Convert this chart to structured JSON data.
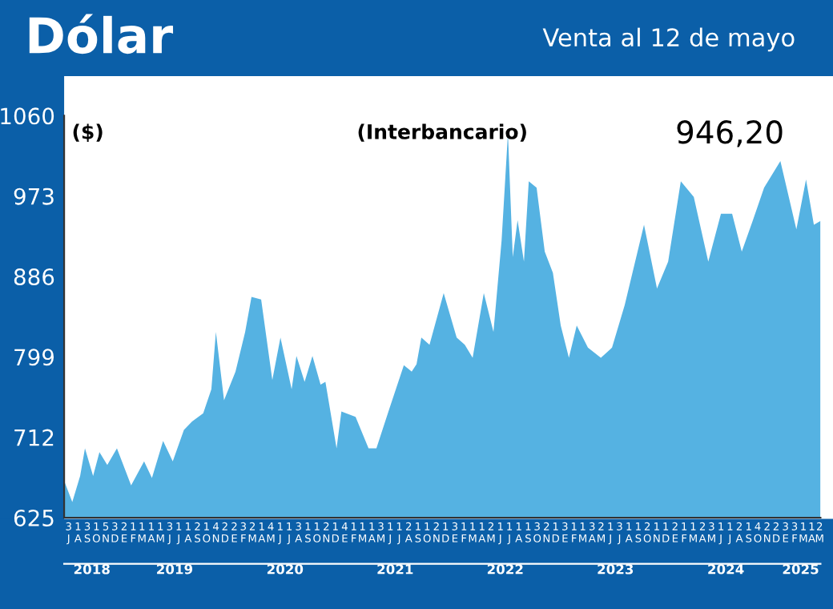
{
  "chart_data": {
    "type": "area",
    "title": "Dólar",
    "subtitle": "Venta al 12 de mayo",
    "ylabel": "($)",
    "annotations": [
      "(Interbancario)",
      "946,20"
    ],
    "color": "#55b2e2",
    "grid": false,
    "ylim": [
      625,
      1060
    ],
    "yticks": [
      625,
      712,
      799,
      886,
      973,
      1060
    ],
    "xlim": [
      "2018-07-01",
      "2025-05-12"
    ],
    "xticks": [
      {
        "value": "2018-07-16",
        "label": "3\nJ"
      },
      {
        "value": "2018-08-16",
        "label": "1\nA"
      },
      {
        "value": "2018-09-16",
        "label": "3\nS"
      },
      {
        "value": "2018-10-16",
        "label": "1\nO"
      },
      {
        "value": "2018-11-16",
        "label": "5\nN"
      },
      {
        "value": "2018-12-16",
        "label": "3\nD"
      },
      {
        "value": "2019-01-16",
        "label": "2\nE"
      },
      {
        "value": "2019-02-15",
        "label": "1\nF"
      },
      {
        "value": "2019-03-16",
        "label": "1\nM"
      },
      {
        "value": "2019-04-16",
        "label": "1\nA"
      },
      {
        "value": "2019-05-16",
        "label": "1\nM"
      },
      {
        "value": "2019-06-16",
        "label": "3\nJ"
      },
      {
        "value": "2019-07-16",
        "label": "1\nJ"
      },
      {
        "value": "2019-08-16",
        "label": "1\nA"
      },
      {
        "value": "2019-09-16",
        "label": "2\nS"
      },
      {
        "value": "2019-10-16",
        "label": "1\nO"
      },
      {
        "value": "2019-11-16",
        "label": "4\nN"
      },
      {
        "value": "2019-12-16",
        "label": "2\nD"
      },
      {
        "value": "2020-01-16",
        "label": "2\nE"
      },
      {
        "value": "2020-02-15",
        "label": "3\nF"
      },
      {
        "value": "2020-03-16",
        "label": "2\nM"
      },
      {
        "value": "2020-04-16",
        "label": "1\nA"
      },
      {
        "value": "2020-05-16",
        "label": "4\nM"
      },
      {
        "value": "2020-06-16",
        "label": "1\nJ"
      },
      {
        "value": "2020-07-16",
        "label": "1\nJ"
      },
      {
        "value": "2020-08-16",
        "label": "3\nA"
      },
      {
        "value": "2020-09-16",
        "label": "1\nS"
      },
      {
        "value": "2020-10-16",
        "label": "1\nO"
      },
      {
        "value": "2020-11-16",
        "label": "2\nN"
      },
      {
        "value": "2020-12-16",
        "label": "1\nD"
      },
      {
        "value": "2021-01-16",
        "label": "4\nE"
      },
      {
        "value": "2021-02-15",
        "label": "1\nF"
      },
      {
        "value": "2021-03-16",
        "label": "1\nM"
      },
      {
        "value": "2021-04-16",
        "label": "1\nA"
      },
      {
        "value": "2021-05-16",
        "label": "3\nM"
      },
      {
        "value": "2021-06-16",
        "label": "1\nJ"
      },
      {
        "value": "2021-07-16",
        "label": "1\nJ"
      },
      {
        "value": "2021-08-16",
        "label": "2\nA"
      },
      {
        "value": "2021-09-16",
        "label": "1\nS"
      },
      {
        "value": "2021-10-16",
        "label": "1\nO"
      },
      {
        "value": "2021-11-16",
        "label": "2\nN"
      },
      {
        "value": "2021-12-16",
        "label": "1\nD"
      },
      {
        "value": "2022-01-16",
        "label": "3\nE"
      },
      {
        "value": "2022-02-15",
        "label": "1\nF"
      },
      {
        "value": "2022-03-16",
        "label": "1\nM"
      },
      {
        "value": "2022-04-16",
        "label": "1\nA"
      },
      {
        "value": "2022-05-16",
        "label": "2\nM"
      },
      {
        "value": "2022-06-16",
        "label": "1\nJ"
      },
      {
        "value": "2022-07-16",
        "label": "1\nJ"
      },
      {
        "value": "2022-08-16",
        "label": "1\nA"
      },
      {
        "value": "2022-09-16",
        "label": "1\nS"
      },
      {
        "value": "2022-10-16",
        "label": "3\nO"
      },
      {
        "value": "2022-11-16",
        "label": "2\nN"
      },
      {
        "value": "2022-12-16",
        "label": "1\nD"
      },
      {
        "value": "2023-01-16",
        "label": "3\nE"
      },
      {
        "value": "2023-02-15",
        "label": "1\nF"
      },
      {
        "value": "2023-03-16",
        "label": "1\nM"
      },
      {
        "value": "2023-04-16",
        "label": "3\nA"
      },
      {
        "value": "2023-05-16",
        "label": "2\nM"
      },
      {
        "value": "2023-06-16",
        "label": "1\nJ"
      },
      {
        "value": "2023-07-16",
        "label": "3\nJ"
      },
      {
        "value": "2023-08-16",
        "label": "1\nA"
      },
      {
        "value": "2023-09-16",
        "label": "1\nS"
      },
      {
        "value": "2023-10-16",
        "label": "2\nO"
      },
      {
        "value": "2023-11-16",
        "label": "1\nN"
      },
      {
        "value": "2023-12-16",
        "label": "1\nD"
      },
      {
        "value": "2024-01-16",
        "label": "2\nE"
      },
      {
        "value": "2024-02-15",
        "label": "1\nF"
      },
      {
        "value": "2024-03-16",
        "label": "1\nM"
      },
      {
        "value": "2024-04-16",
        "label": "2\nA"
      },
      {
        "value": "2024-05-16",
        "label": "3\nM"
      },
      {
        "value": "2024-06-16",
        "label": "1\nJ"
      },
      {
        "value": "2024-07-16",
        "label": "1\nJ"
      },
      {
        "value": "2024-08-16",
        "label": "2\nA"
      },
      {
        "value": "2024-09-16",
        "label": "1\nS"
      },
      {
        "value": "2024-10-16",
        "label": "4\nO"
      },
      {
        "value": "2024-11-16",
        "label": "2\nN"
      },
      {
        "value": "2024-12-16",
        "label": "2\nD"
      },
      {
        "value": "2025-01-16",
        "label": "3\nE"
      },
      {
        "value": "2025-02-15",
        "label": "3\nF"
      },
      {
        "value": "2025-03-16",
        "label": "1\nM"
      },
      {
        "value": "2025-04-13",
        "label": "1\nA"
      },
      {
        "value": "2025-05-09",
        "label": "2\nM"
      }
    ],
    "x2lim": [
      "2018-07-01",
      "2025-05-12"
    ],
    "x2ticks": [
      {
        "value": "2018-10-01",
        "label": "2018"
      },
      {
        "value": "2019-07-02",
        "label": "2019"
      },
      {
        "value": "2020-07-02",
        "label": "2020"
      },
      {
        "value": "2021-07-02",
        "label": "2021"
      },
      {
        "value": "2022-07-02",
        "label": "2022"
      },
      {
        "value": "2023-07-02",
        "label": "2023"
      },
      {
        "value": "2024-07-02",
        "label": "2024"
      },
      {
        "value": "2025-03-07",
        "label": "2025"
      }
    ],
    "x": [
      "2018-07-01",
      "2018-07-28",
      "2018-08-23",
      "2018-09-08",
      "2018-10-05",
      "2018-10-26",
      "2018-11-21",
      "2018-12-23",
      "2019-02-08",
      "2019-03-23",
      "2019-04-18",
      "2019-05-25",
      "2019-06-26",
      "2019-08-02",
      "2019-08-29",
      "2019-10-05",
      "2019-11-01",
      "2019-11-16",
      "2019-12-13",
      "2020-01-20",
      "2020-02-21",
      "2020-03-13",
      "2020-04-14",
      "2020-05-21",
      "2020-06-17",
      "2020-07-24",
      "2020-08-09",
      "2020-09-05",
      "2020-10-01",
      "2020-10-28",
      "2020-11-13",
      "2020-12-20",
      "2021-01-05",
      "2021-02-21",
      "2021-04-05",
      "2021-05-01",
      "2021-06-13",
      "2021-07-31",
      "2021-08-26",
      "2021-09-11",
      "2021-09-27",
      "2021-10-24",
      "2021-12-10",
      "2022-01-22",
      "2022-02-18",
      "2022-03-16",
      "2022-04-22",
      "2022-05-24",
      "2022-06-20",
      "2022-07-11",
      "2022-07-27",
      "2022-08-12",
      "2022-09-02",
      "2022-09-18",
      "2022-10-14",
      "2022-11-10",
      "2022-12-07",
      "2023-01-02",
      "2023-01-29",
      "2023-02-24",
      "2023-04-02",
      "2023-05-15",
      "2023-06-21",
      "2023-08-02",
      "2023-10-05",
      "2023-11-17",
      "2023-12-24",
      "2024-02-04",
      "2024-03-18",
      "2024-05-05",
      "2024-06-16",
      "2024-07-23",
      "2024-08-24",
      "2024-09-30",
      "2024-11-06",
      "2024-12-30",
      "2025-02-21",
      "2025-03-25",
      "2025-04-20",
      "2025-05-12"
    ],
    "values": [
      665,
      642,
      670,
      700,
      670,
      696,
      682,
      700,
      660,
      686,
      668,
      708,
      686,
      720,
      729,
      738,
      764,
      826,
      752,
      783,
      826,
      864,
      861,
      774,
      820,
      764,
      800,
      772,
      800,
      769,
      772,
      700,
      740,
      734,
      700,
      700,
      743,
      790,
      783,
      791,
      820,
      812,
      868,
      820,
      812,
      798,
      868,
      826,
      925,
      1041,
      907,
      947,
      902,
      989,
      982,
      913,
      890,
      833,
      798,
      833,
      809,
      798,
      809,
      855,
      942,
      873,
      902,
      989,
      972,
      902,
      954,
      954,
      913,
      947,
      982,
      1011,
      937,
      991,
      942,
      946
    ]
  }
}
